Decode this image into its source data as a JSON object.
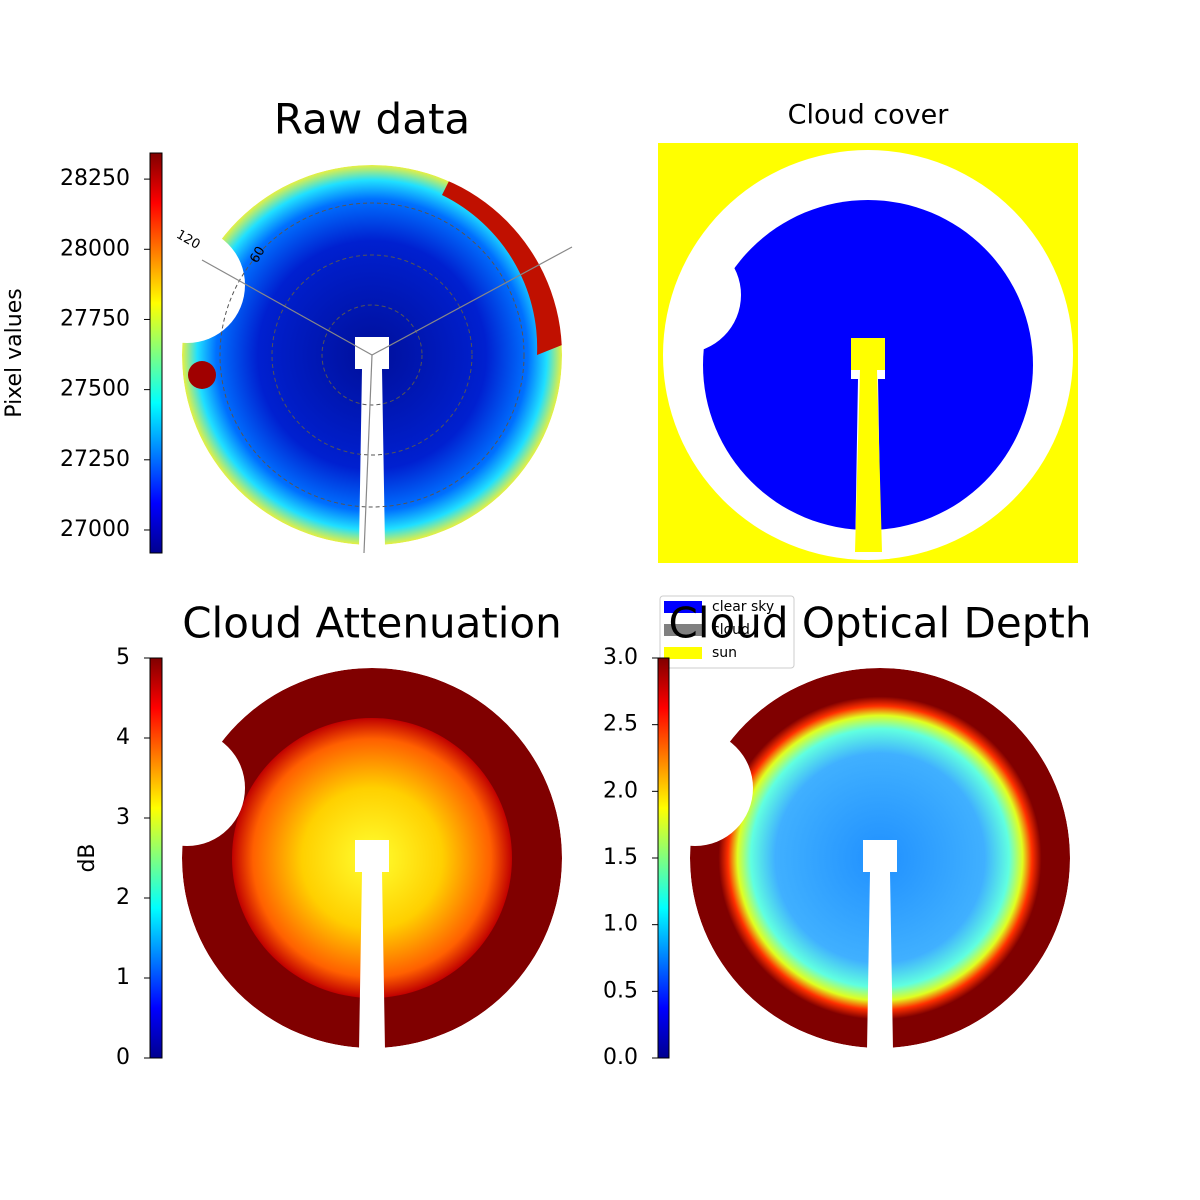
{
  "chart_data": [
    {
      "type": "image",
      "title": "Raw data",
      "colormap": "jet",
      "colorbar": {
        "label": "Pixel values",
        "lim": [
          26918,
          28343
        ],
        "ticks": [
          27000,
          27250,
          27500,
          27750,
          28000,
          28250
        ]
      },
      "polar_labels": [
        "120",
        "60"
      ]
    },
    {
      "type": "classification",
      "title": "Cloud cover",
      "legend": [
        {
          "name": "clear sky",
          "color": "#0000ff"
        },
        {
          "name": "cloud",
          "color": "#808080"
        },
        {
          "name": "sun",
          "color": "#ffff00"
        }
      ]
    },
    {
      "type": "image",
      "title": "Cloud Attenuation",
      "colormap": "jet",
      "colorbar": {
        "label": "dB",
        "lim": [
          0,
          5
        ],
        "ticks": [
          0,
          1,
          2,
          3,
          4,
          5
        ]
      }
    },
    {
      "type": "image",
      "title": "Cloud Optical Depth",
      "colormap": "jet",
      "colorbar": {
        "lim": [
          0,
          3
        ],
        "ticks": [
          {
            "value": 0,
            "label": "0.0"
          },
          {
            "value": 0.5,
            "label": "0.5"
          },
          {
            "value": 1,
            "label": "1.0"
          },
          {
            "value": 1.5,
            "label": "1.5"
          },
          {
            "value": 2,
            "label": "2.0"
          },
          {
            "value": 2.5,
            "label": "2.5"
          },
          {
            "value": 3,
            "label": "3.0"
          }
        ]
      }
    }
  ]
}
